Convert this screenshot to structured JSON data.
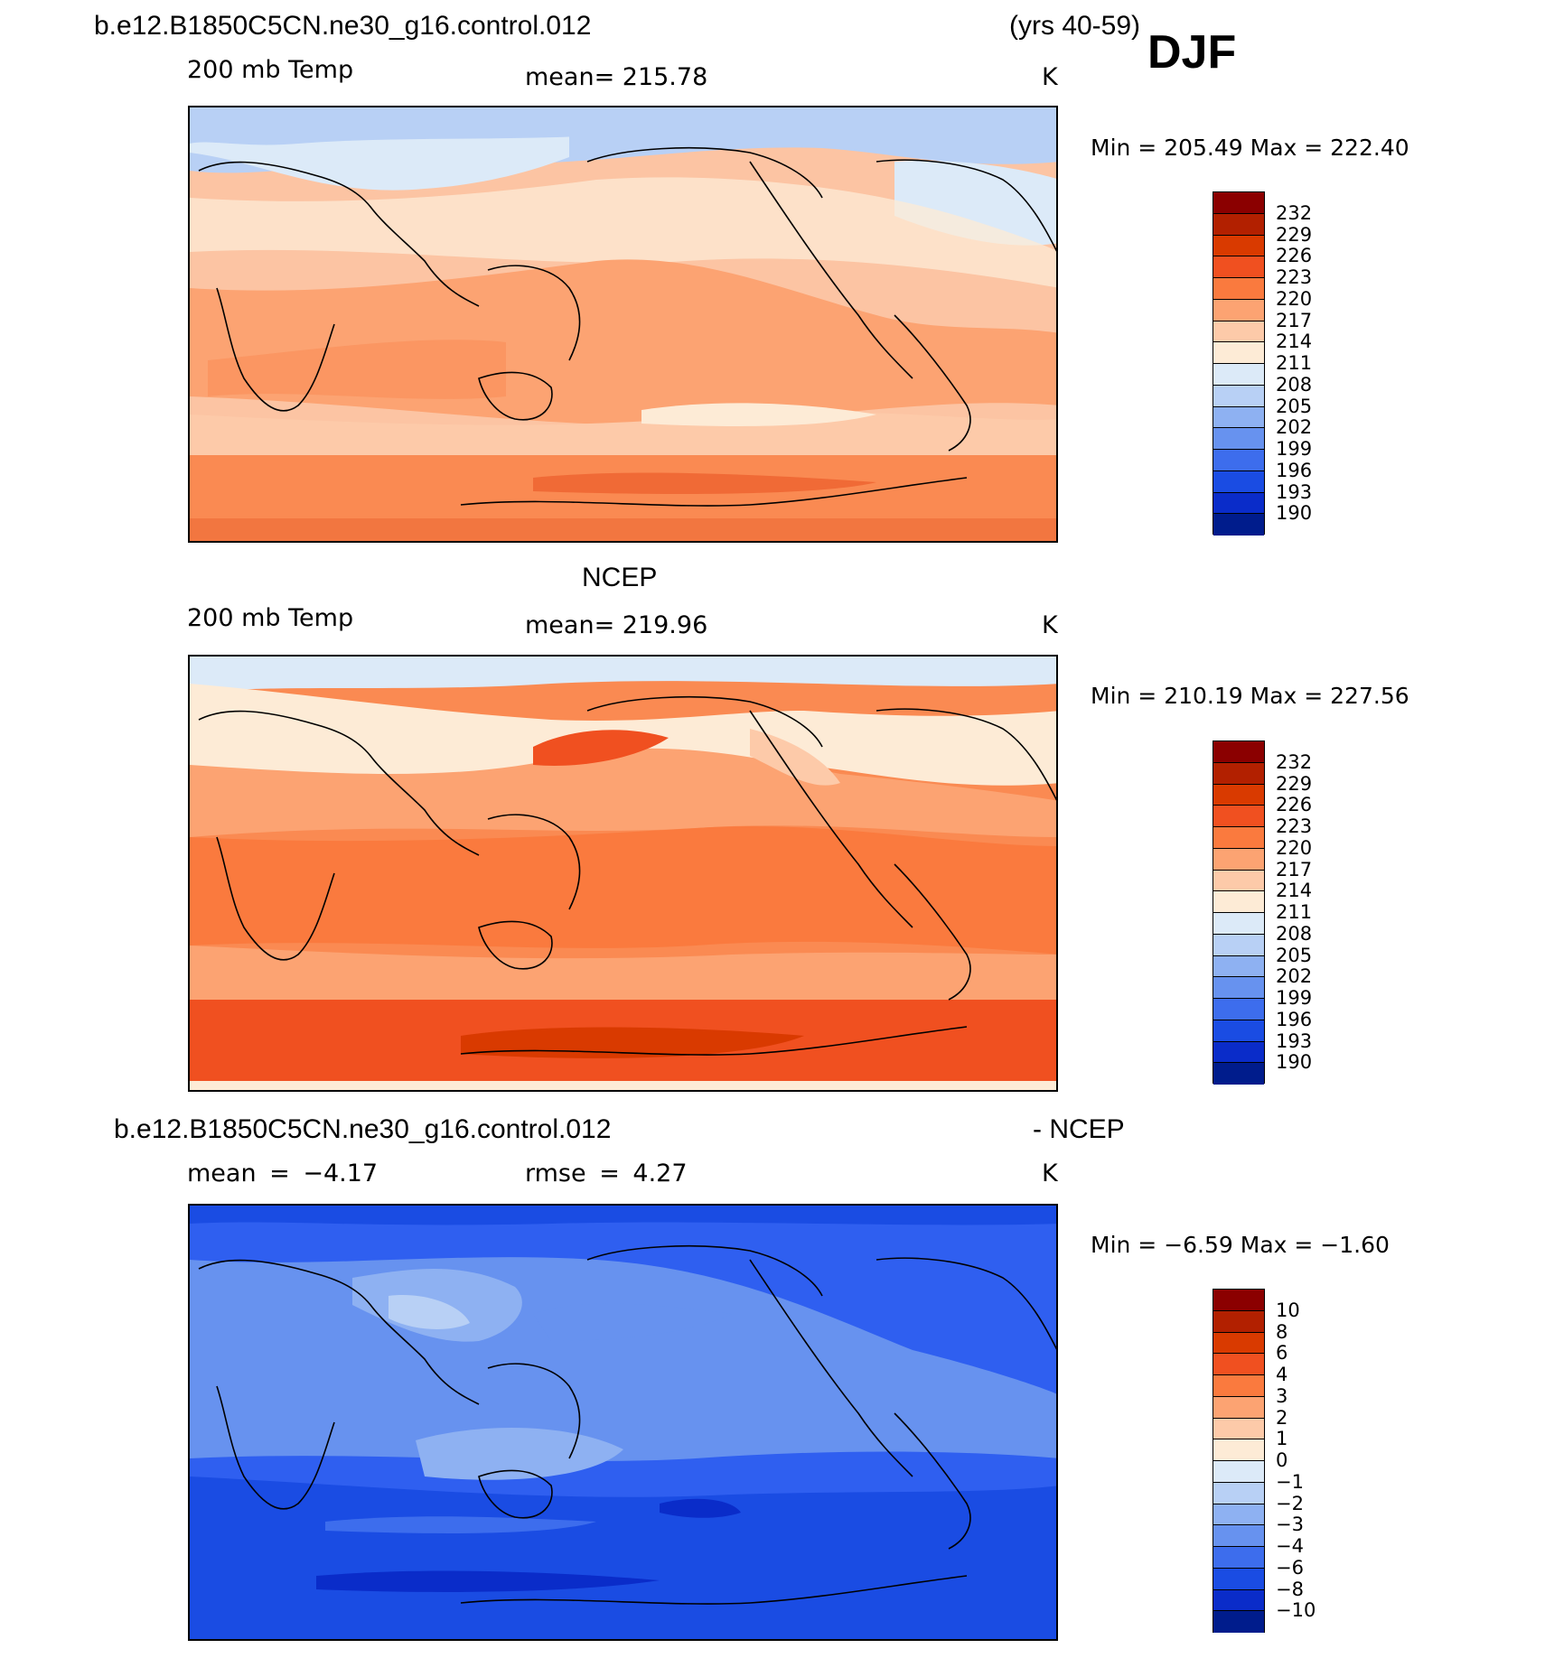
{
  "header": {
    "case_name": "b.e12.B1850C5CN.ne30_g16.control.012",
    "years": "(yrs 40-59)",
    "season": "DJF"
  },
  "panels": [
    {
      "id": "model",
      "title": "",
      "left_label": "200 mb Temp",
      "center_label": "mean= 215.78",
      "units": "K",
      "minmax": "Min = 205.49 Max = 222.40",
      "colorbar": {
        "levels": [
          "232",
          "229",
          "226",
          "223",
          "220",
          "217",
          "214",
          "211",
          "208",
          "205",
          "202",
          "199",
          "196",
          "193",
          "190"
        ],
        "colors": [
          "#8b0000",
          "#b22000",
          "#d93a00",
          "#f05020",
          "#fa7a3e",
          "#fca372",
          "#fdcaa9",
          "#fdebd6",
          "#dceaf8",
          "#b8d0f5",
          "#8eb1f2",
          "#6792ef",
          "#3d6ded",
          "#1a4ce3",
          "#0a2cc9",
          "#001c8c"
        ]
      },
      "map_fill": "#fbb290"
    },
    {
      "id": "obs",
      "title": "NCEP",
      "left_label": "200 mb Temp",
      "center_label": "mean= 219.96",
      "units": "K",
      "minmax": "Min = 210.19 Max = 227.56",
      "colorbar": {
        "levels": [
          "232",
          "229",
          "226",
          "223",
          "220",
          "217",
          "214",
          "211",
          "208",
          "205",
          "202",
          "199",
          "196",
          "193",
          "190"
        ],
        "colors": [
          "#8b0000",
          "#b22000",
          "#d93a00",
          "#f05020",
          "#fa7a3e",
          "#fca372",
          "#fdcaa9",
          "#fdebd6",
          "#dceaf8",
          "#b8d0f5",
          "#8eb1f2",
          "#6792ef",
          "#3d6ded",
          "#1a4ce3",
          "#0a2cc9",
          "#001c8c"
        ]
      },
      "map_fill": "#f98a5a"
    },
    {
      "id": "diff",
      "title": "b.e12.B1850C5CN.ne30_g16.control.012",
      "title_right": "- NCEP",
      "left_label": "mean = −4.17",
      "center_label": "rmse = 4.27",
      "units": "K",
      "minmax": "Min = −6.59 Max = −1.60",
      "colorbar": {
        "levels": [
          "10",
          "8",
          "6",
          "4",
          "3",
          "2",
          "1",
          "0",
          "−1",
          "−2",
          "−3",
          "−4",
          "−6",
          "−8",
          "−10"
        ],
        "colors": [
          "#8b0000",
          "#b22000",
          "#d93a00",
          "#f05020",
          "#fa7a3e",
          "#fca372",
          "#fdcaa9",
          "#fdebd6",
          "#dceaf8",
          "#b8d0f5",
          "#8eb1f2",
          "#6792ef",
          "#3d6ded",
          "#1a4ce3",
          "#0a2cc9",
          "#001c8c"
        ]
      },
      "map_fill": "#3f6fee"
    }
  ]
}
